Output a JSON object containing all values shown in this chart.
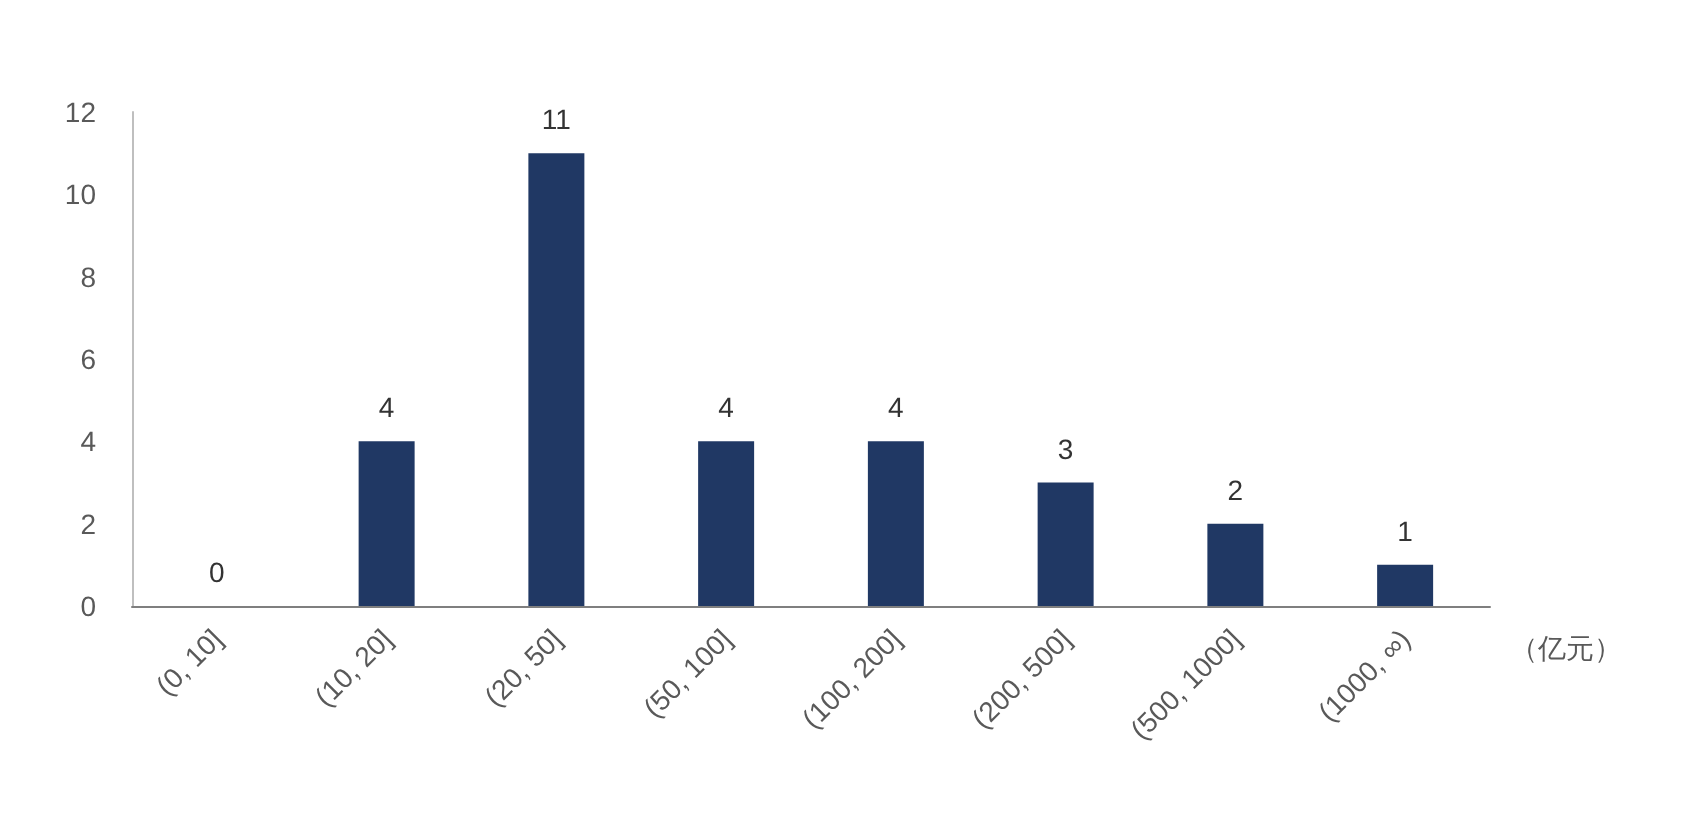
{
  "chart_data": {
    "type": "bar",
    "xlabel": "（亿元）",
    "categories": [
      "(0, 10]",
      "(10, 20]",
      "(20, 50]",
      "(50, 100]",
      "(100, 200]",
      "(200, 500]",
      "(500, 1000]",
      "(1000, ∞)"
    ],
    "values": [
      0,
      4,
      11,
      4,
      4,
      3,
      2,
      1
    ],
    "color": "#203864",
    "ylim": [
      0,
      12
    ],
    "yticks": [
      0,
      2,
      4,
      6,
      8,
      10,
      12
    ],
    "grid": false,
    "data_labels": true
  }
}
